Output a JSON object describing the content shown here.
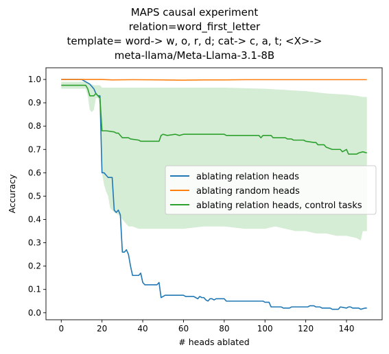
{
  "chart_data": {
    "type": "line",
    "title_lines": [
      "MAPS causal experiment",
      "relation=word_first_letter",
      "template= word-> w, o, r, d; cat-> c, a, t; <X>->",
      "meta-llama/Meta-Llama-3.1-8B"
    ],
    "xlabel": "# heads ablated",
    "ylabel": "Accuracy",
    "xlim": [
      -7.5,
      157.5
    ],
    "ylim": [
      -0.03,
      1.05
    ],
    "xticks": [
      0,
      20,
      40,
      60,
      80,
      100,
      120,
      140
    ],
    "xtick_labels": [
      "0",
      "20",
      "40",
      "60",
      "80",
      "100",
      "120",
      "140"
    ],
    "yticks": [
      0.0,
      0.1,
      0.2,
      0.3,
      0.4,
      0.5,
      0.6,
      0.7,
      0.8,
      0.9,
      1.0
    ],
    "ytick_labels": [
      "0.0",
      "0.1",
      "0.2",
      "0.3",
      "0.4",
      "0.5",
      "0.6",
      "0.7",
      "0.8",
      "0.9",
      "1.0"
    ],
    "grid": false,
    "legend_position": "center-right",
    "series": [
      {
        "name": "ablating relation heads",
        "color": "#1f77b4",
        "points": [
          [
            0,
            1.0
          ],
          [
            10,
            1.0
          ],
          [
            12,
            0.99
          ],
          [
            14,
            0.98
          ],
          [
            16,
            0.96
          ],
          [
            17,
            0.94
          ],
          [
            18,
            0.93
          ],
          [
            19,
            0.93
          ],
          [
            20,
            0.6
          ],
          [
            21,
            0.6
          ],
          [
            22,
            0.59
          ],
          [
            23,
            0.58
          ],
          [
            25,
            0.58
          ],
          [
            26,
            0.44
          ],
          [
            27,
            0.43
          ],
          [
            28,
            0.44
          ],
          [
            29,
            0.42
          ],
          [
            30,
            0.26
          ],
          [
            31,
            0.26
          ],
          [
            32,
            0.27
          ],
          [
            33,
            0.25
          ],
          [
            34,
            0.2
          ],
          [
            35,
            0.16
          ],
          [
            38,
            0.16
          ],
          [
            39,
            0.17
          ],
          [
            40,
            0.13
          ],
          [
            41,
            0.12
          ],
          [
            44,
            0.12
          ],
          [
            45,
            0.12
          ],
          [
            47,
            0.12
          ],
          [
            48,
            0.13
          ],
          [
            49,
            0.065
          ],
          [
            50,
            0.07
          ],
          [
            51,
            0.075
          ],
          [
            60,
            0.075
          ],
          [
            61,
            0.07
          ],
          [
            65,
            0.07
          ],
          [
            66,
            0.065
          ],
          [
            67,
            0.06
          ],
          [
            68,
            0.07
          ],
          [
            69,
            0.065
          ],
          [
            70,
            0.065
          ],
          [
            71,
            0.055
          ],
          [
            72,
            0.05
          ],
          [
            73,
            0.06
          ],
          [
            74,
            0.06
          ],
          [
            75,
            0.055
          ],
          [
            76,
            0.06
          ],
          [
            80,
            0.06
          ],
          [
            81,
            0.05
          ],
          [
            99,
            0.05
          ],
          [
            100,
            0.045
          ],
          [
            102,
            0.045
          ],
          [
            103,
            0.025
          ],
          [
            108,
            0.025
          ],
          [
            109,
            0.02
          ],
          [
            112,
            0.02
          ],
          [
            113,
            0.025
          ],
          [
            121,
            0.025
          ],
          [
            122,
            0.03
          ],
          [
            124,
            0.03
          ],
          [
            125,
            0.025
          ],
          [
            127,
            0.025
          ],
          [
            128,
            0.02
          ],
          [
            132,
            0.02
          ],
          [
            133,
            0.015
          ],
          [
            136,
            0.015
          ],
          [
            137,
            0.025
          ],
          [
            140,
            0.02
          ],
          [
            141,
            0.025
          ],
          [
            142,
            0.025
          ],
          [
            143,
            0.02
          ],
          [
            146,
            0.02
          ],
          [
            147,
            0.015
          ],
          [
            149,
            0.02
          ],
          [
            150,
            0.02
          ]
        ]
      },
      {
        "name": "ablating random heads",
        "color": "#ff7f0e",
        "points": [
          [
            0,
            1.0
          ],
          [
            20,
            1.0
          ],
          [
            25,
            0.998
          ],
          [
            35,
            0.999
          ],
          [
            50,
            0.998
          ],
          [
            60,
            0.997
          ],
          [
            70,
            0.998
          ],
          [
            80,
            0.998
          ],
          [
            90,
            0.999
          ],
          [
            100,
            0.999
          ],
          [
            120,
            0.999
          ],
          [
            135,
            0.999
          ],
          [
            150,
            0.999
          ]
        ]
      },
      {
        "name": "ablating relation heads, control tasks",
        "color": "#2ca02c",
        "points": [
          [
            0,
            0.975
          ],
          [
            12,
            0.975
          ],
          [
            13,
            0.96
          ],
          [
            14,
            0.93
          ],
          [
            16,
            0.93
          ],
          [
            17,
            0.94
          ],
          [
            18,
            0.93
          ],
          [
            19,
            0.92
          ],
          [
            20,
            0.78
          ],
          [
            22,
            0.78
          ],
          [
            26,
            0.775
          ],
          [
            27,
            0.77
          ],
          [
            28,
            0.77
          ],
          [
            29,
            0.76
          ],
          [
            30,
            0.75
          ],
          [
            33,
            0.75
          ],
          [
            34,
            0.745
          ],
          [
            38,
            0.74
          ],
          [
            39,
            0.735
          ],
          [
            48,
            0.735
          ],
          [
            49,
            0.76
          ],
          [
            50,
            0.765
          ],
          [
            52,
            0.76
          ],
          [
            56,
            0.765
          ],
          [
            58,
            0.76
          ],
          [
            60,
            0.765
          ],
          [
            70,
            0.765
          ],
          [
            80,
            0.765
          ],
          [
            81,
            0.76
          ],
          [
            97,
            0.76
          ],
          [
            98,
            0.75
          ],
          [
            99,
            0.76
          ],
          [
            103,
            0.76
          ],
          [
            104,
            0.75
          ],
          [
            110,
            0.75
          ],
          [
            111,
            0.745
          ],
          [
            113,
            0.745
          ],
          [
            114,
            0.74
          ],
          [
            119,
            0.74
          ],
          [
            120,
            0.735
          ],
          [
            124,
            0.73
          ],
          [
            125,
            0.73
          ],
          [
            126,
            0.72
          ],
          [
            129,
            0.72
          ],
          [
            130,
            0.71
          ],
          [
            133,
            0.7
          ],
          [
            137,
            0.7
          ],
          [
            138,
            0.69
          ],
          [
            140,
            0.7
          ],
          [
            141,
            0.68
          ],
          [
            145,
            0.68
          ],
          [
            146,
            0.685
          ],
          [
            148,
            0.69
          ],
          [
            150,
            0.685
          ]
        ],
        "band_upper": [
          [
            0,
            0.99
          ],
          [
            12,
            0.99
          ],
          [
            13,
            0.985
          ],
          [
            16,
            0.975
          ],
          [
            19,
            0.975
          ],
          [
            20,
            0.965
          ],
          [
            30,
            0.965
          ],
          [
            40,
            0.965
          ],
          [
            60,
            0.965
          ],
          [
            80,
            0.965
          ],
          [
            100,
            0.96
          ],
          [
            110,
            0.955
          ],
          [
            120,
            0.95
          ],
          [
            125,
            0.945
          ],
          [
            130,
            0.94
          ],
          [
            140,
            0.935
          ],
          [
            145,
            0.93
          ],
          [
            148,
            0.925
          ],
          [
            150,
            0.925
          ]
        ],
        "band_lower": [
          [
            0,
            0.96
          ],
          [
            12,
            0.96
          ],
          [
            13,
            0.93
          ],
          [
            14,
            0.87
          ],
          [
            15,
            0.86
          ],
          [
            16,
            0.87
          ],
          [
            17,
            0.92
          ],
          [
            18,
            0.92
          ],
          [
            19,
            0.89
          ],
          [
            20,
            0.6
          ],
          [
            21,
            0.55
          ],
          [
            22,
            0.52
          ],
          [
            23,
            0.5
          ],
          [
            24,
            0.45
          ],
          [
            26,
            0.43
          ],
          [
            28,
            0.42
          ],
          [
            30,
            0.4
          ],
          [
            33,
            0.37
          ],
          [
            35,
            0.37
          ],
          [
            38,
            0.36
          ],
          [
            40,
            0.36
          ],
          [
            45,
            0.36
          ],
          [
            50,
            0.36
          ],
          [
            60,
            0.36
          ],
          [
            70,
            0.37
          ],
          [
            80,
            0.37
          ],
          [
            90,
            0.36
          ],
          [
            100,
            0.36
          ],
          [
            105,
            0.37
          ],
          [
            110,
            0.36
          ],
          [
            115,
            0.35
          ],
          [
            120,
            0.35
          ],
          [
            125,
            0.34
          ],
          [
            130,
            0.34
          ],
          [
            135,
            0.33
          ],
          [
            140,
            0.33
          ],
          [
            145,
            0.32
          ],
          [
            147,
            0.31
          ],
          [
            148,
            0.35
          ],
          [
            150,
            0.35
          ]
        ]
      }
    ]
  }
}
